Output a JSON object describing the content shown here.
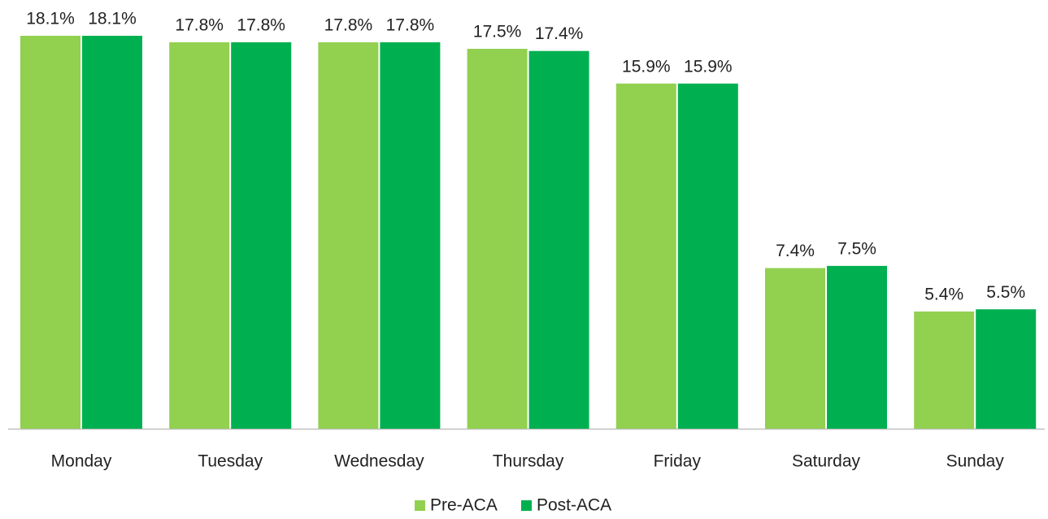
{
  "chart_data": {
    "type": "bar",
    "categories": [
      "Monday",
      "Tuesday",
      "Wednesday",
      "Thursday",
      "Friday",
      "Saturday",
      "Sunday"
    ],
    "series": [
      {
        "name": "Pre-ACA",
        "color": "#92d050",
        "values": [
          18.1,
          17.8,
          17.8,
          17.5,
          15.9,
          7.4,
          5.4
        ],
        "value_labels": [
          "18.1%",
          "17.8%",
          "17.8%",
          "17.5%",
          "15.9%",
          "7.4%",
          "5.4%"
        ]
      },
      {
        "name": "Post-ACA",
        "color": "#00b050",
        "values": [
          18.1,
          17.8,
          17.8,
          17.4,
          15.9,
          7.5,
          5.5
        ],
        "value_labels": [
          "18.1%",
          "17.8%",
          "17.8%",
          "17.4%",
          "15.9%",
          "7.5%",
          "5.5%"
        ]
      }
    ],
    "legend": "bottom"
  }
}
